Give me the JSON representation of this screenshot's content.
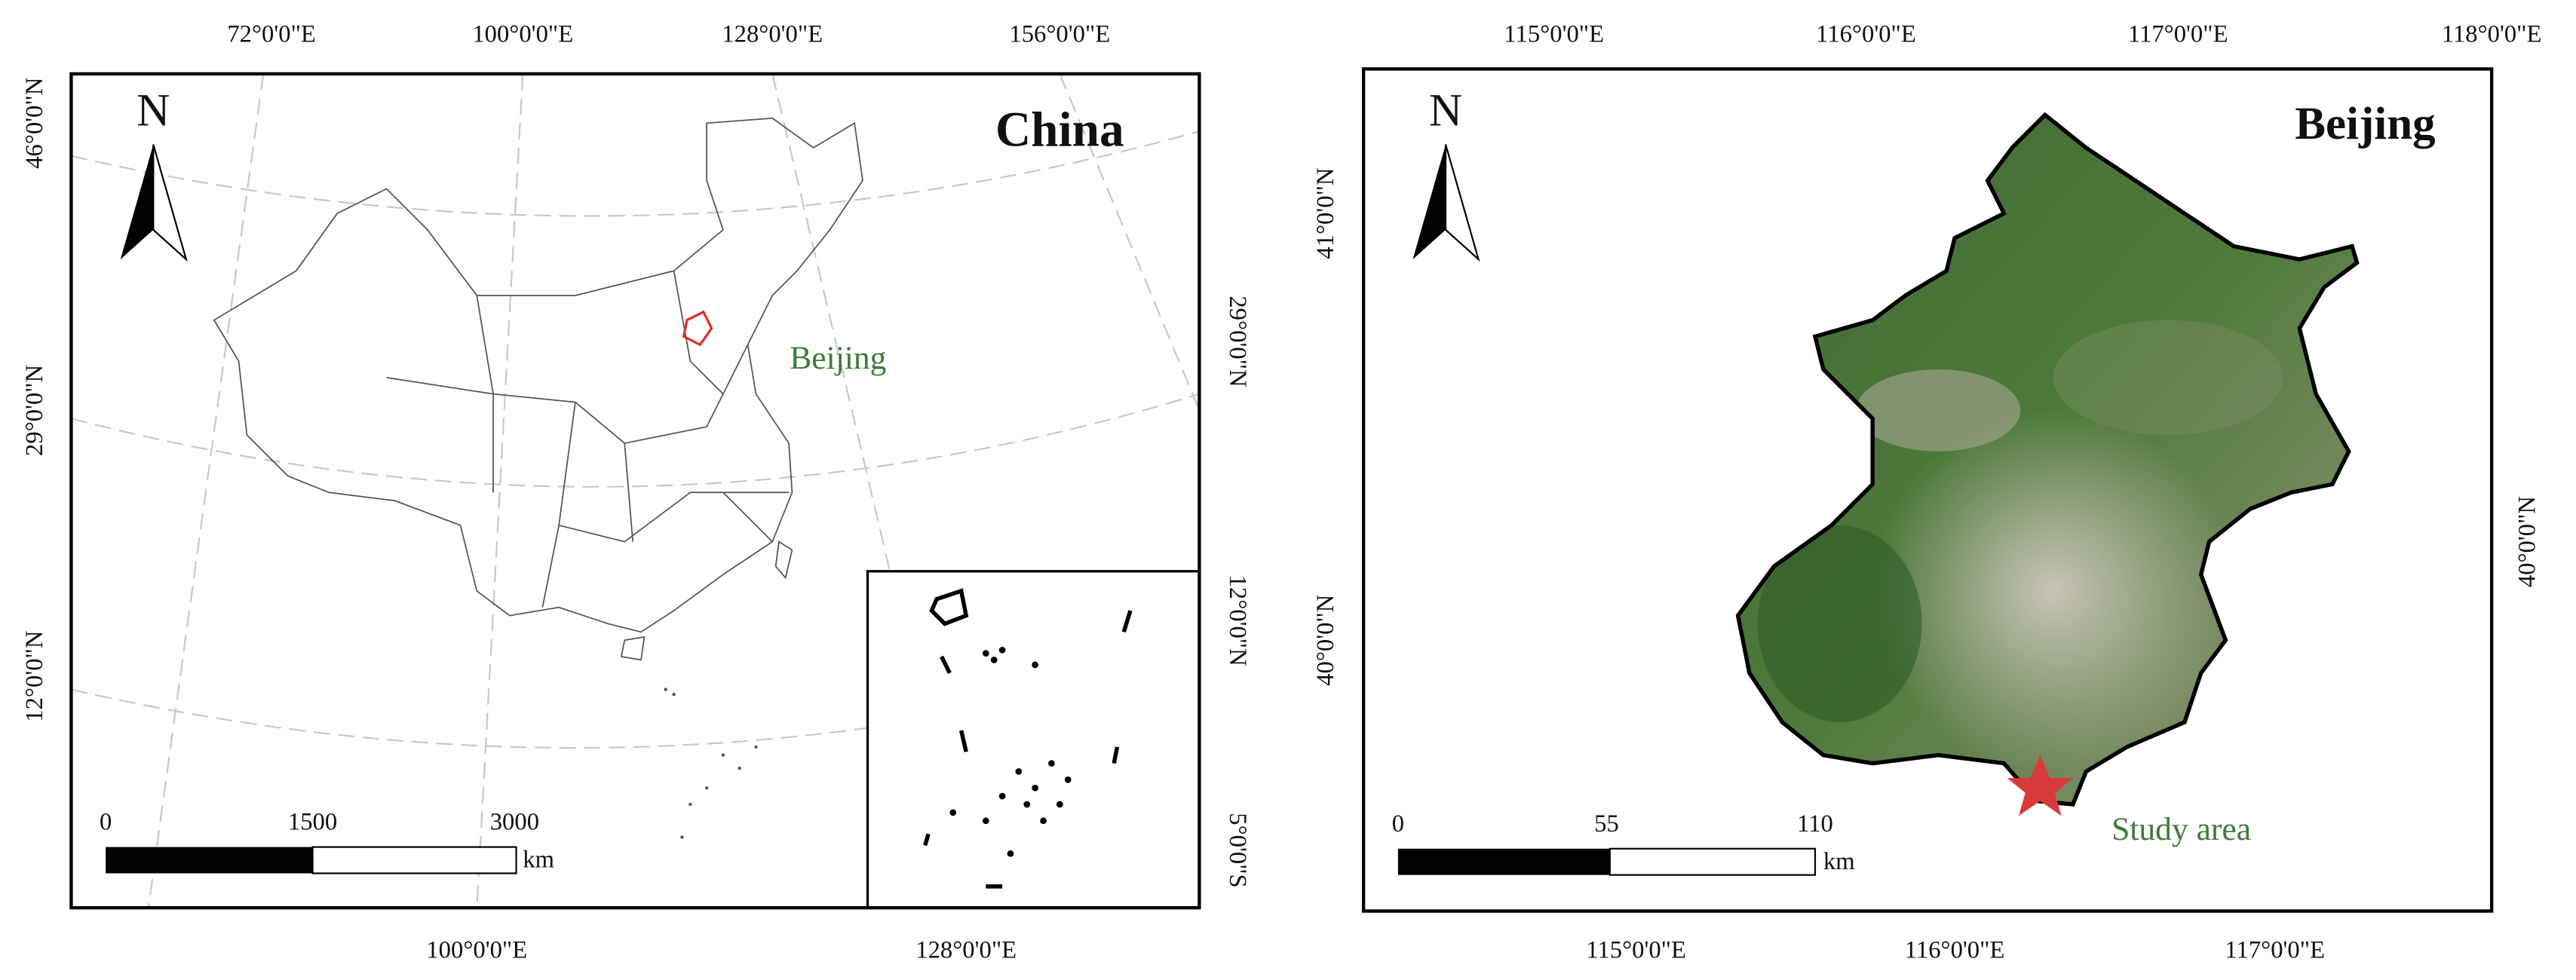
{
  "china_map": {
    "title": "China",
    "north": "N",
    "city_label": "Beijing",
    "top_labels": [
      "72°0'0\"E",
      "100°0'0\"E",
      "128°0'0\"E",
      "156°0'0\"E"
    ],
    "bottom_labels": [
      "100°0'0\"E",
      "128°0'0\"E"
    ],
    "left_labels": [
      "46°0'0\"N",
      "29°0'0\"N",
      "12°0'0\"N"
    ],
    "right_labels": [
      "29°0'0\"N",
      "12°0'0\"N",
      "5°0'0\"S"
    ],
    "scale_labels": [
      "0",
      "1500",
      "3000"
    ],
    "scale_unit": "km"
  },
  "beijing_map": {
    "title": "Beijing",
    "north": "N",
    "site_label": "Study area",
    "top_labels": [
      "115°0'0\"E",
      "116°0'0\"E",
      "117°0'0\"E",
      "118°0'0\"E"
    ],
    "bottom_labels": [
      "115°0'0\"E",
      "116°0'0\"E",
      "117°0'0\"E"
    ],
    "left_labels": [
      "41°0'0\"N",
      "40°0'0\"N"
    ],
    "right_labels": [
      "40°0'0\"N"
    ],
    "scale_labels": [
      "0",
      "55",
      "110"
    ],
    "scale_unit": "km"
  }
}
